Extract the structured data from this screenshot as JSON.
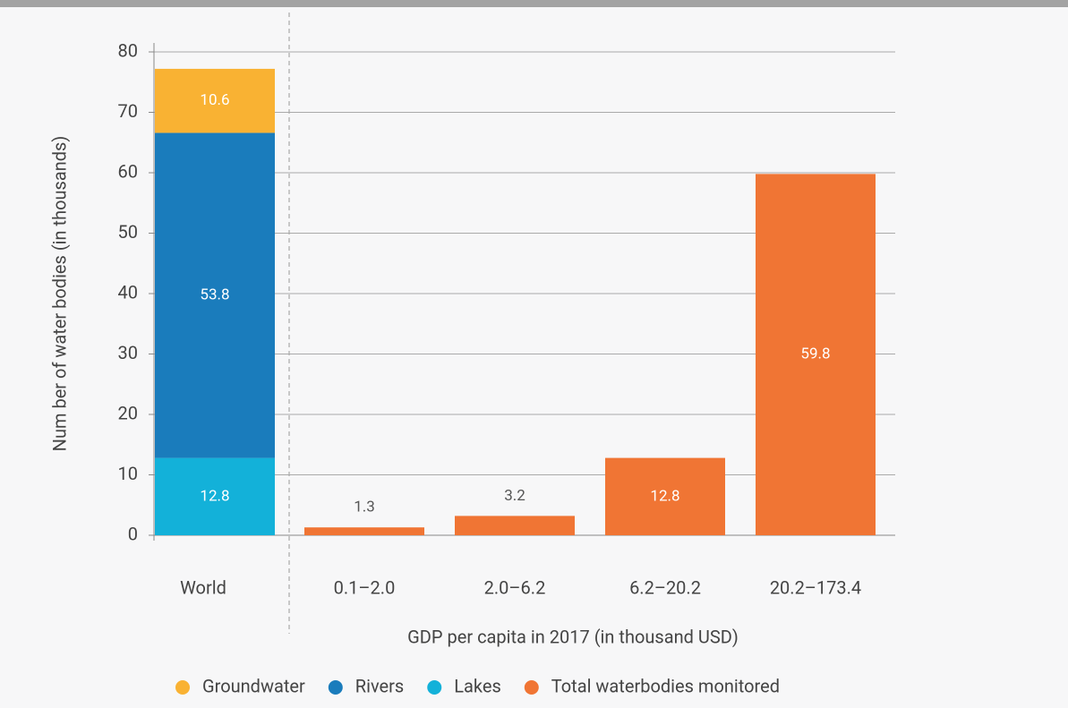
{
  "chart_data": {
    "type": "stacked_bar",
    "categories": [
      "World",
      "0.1–2.0",
      "2.0–6.2",
      "6.2–20.2",
      "20.2–173.4"
    ],
    "series": [
      {
        "name": "Groundwater",
        "color": "#f9b233",
        "values": [
          10.6,
          null,
          null,
          null,
          null
        ]
      },
      {
        "name": "Rivers",
        "color": "#1a7cbc",
        "values": [
          53.8,
          null,
          null,
          null,
          null
        ]
      },
      {
        "name": "Lakes",
        "color": "#13b1d9",
        "values": [
          12.8,
          null,
          null,
          null,
          null
        ]
      },
      {
        "name": "Total waterbodies monitored",
        "color": "#f07534",
        "values": [
          null,
          1.3,
          3.2,
          12.8,
          59.8
        ]
      }
    ],
    "xlabel": "GDP per capita in 2017 (in thousand USD)",
    "ylabel": "Num ber of water bodies (in thousands)",
    "ylim": [
      0,
      80
    ],
    "yticks": [
      0,
      10,
      20,
      30,
      40,
      50,
      60,
      70,
      80
    ],
    "grid": true
  }
}
